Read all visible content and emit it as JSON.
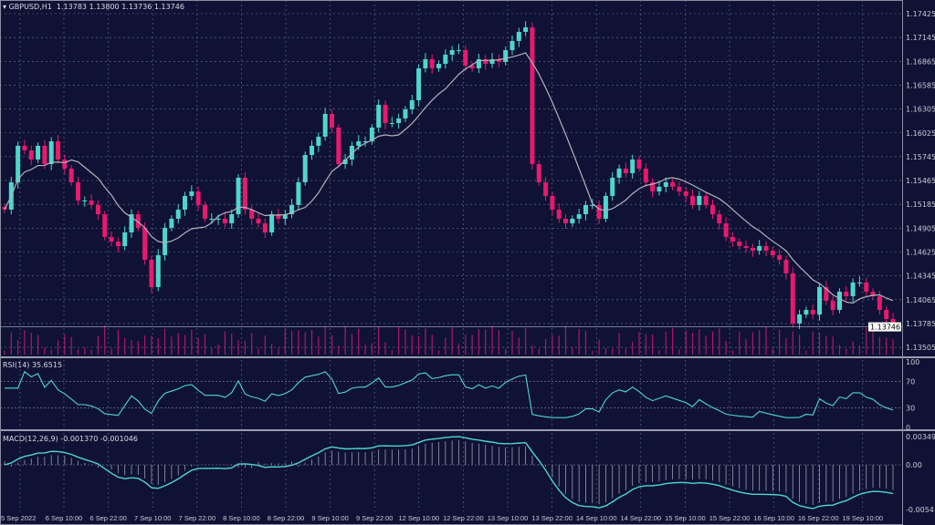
{
  "header": {
    "symbol": "GBPUSD,H1",
    "open": "1.13783",
    "high": "1.13800",
    "low": "1.13736",
    "close": "1.13746"
  },
  "rsi": {
    "label": "RSI(14) 35.6515",
    "levels": [
      "100",
      "70",
      "30",
      "0"
    ]
  },
  "macd": {
    "label": "MACD(12,26,9) -0.001370 -0.001046",
    "levels": [
      "0.003497",
      "0.00",
      "-0.005412"
    ]
  },
  "current_price": "1.13746",
  "colors": {
    "background": "#0f1234",
    "up": "#4fd6cc",
    "down": "#e8196e",
    "ma": "#b0b3bf",
    "indicator": "#4fd6cc",
    "grid": "#6a6f8a"
  },
  "chart_data": {
    "type": "candlestick",
    "title": "GBPUSD,H1",
    "ylim": [
      1.135,
      1.175
    ],
    "y_ticks": [
      "1.17425",
      "1.17145",
      "1.16865",
      "1.16585",
      "1.16305",
      "1.16025",
      "1.15745",
      "1.15465",
      "1.15185",
      "1.14905",
      "1.14625",
      "1.14345",
      "1.14065",
      "1.13785",
      "1.13505"
    ],
    "x_ticks": [
      "5 Sep 2022",
      "6 Sep 10:00",
      "6 Sep 22:00",
      "7 Sep 10:00",
      "7 Sep 22:00",
      "8 Sep 10:00",
      "8 Sep 22:00",
      "9 Sep 10:00",
      "9 Sep 22:00",
      "12 Sep 10:00",
      "12 Sep 22:00",
      "13 Sep 10:00",
      "13 Sep 22:00",
      "14 Sep 10:00",
      "14 Sep 22:00",
      "15 Sep 10:00",
      "15 Sep 22:00",
      "16 Sep 10:00",
      "16 Sep 22:00",
      "19 Sep 10:00"
    ],
    "grid": true,
    "closes": [
      1.15123,
      1.15444,
      1.15873,
      1.15819,
      1.15712,
      1.15873,
      1.15658,
      1.15926,
      1.15712,
      1.15605,
      1.15444,
      1.1523,
      1.1523,
      1.15177,
      1.15069,
      1.14802,
      1.14748,
      1.14695,
      1.14855,
      1.15069,
      1.14909,
      1.14534,
      1.14213,
      1.14588,
      1.14909,
      1.15016,
      1.15123,
      1.15284,
      1.15337,
      1.15177,
      1.15016,
      1.15016,
      1.15016,
      1.14962,
      1.15069,
      1.15498,
      1.15123,
      1.15016,
      1.14962,
      1.14855,
      1.15069,
      1.15016,
      1.15069,
      1.15177,
      1.15444,
      1.15765,
      1.15873,
      1.1598,
      1.16247,
      1.16087,
      1.15658,
      1.15712,
      1.15873,
      1.15926,
      1.15926,
      1.16087,
      1.16354,
      1.1614,
      1.1614,
      1.16194,
      1.16301,
      1.16408,
      1.16783,
      1.1689,
      1.16783,
      1.16836,
      1.16943,
      1.16997,
      1.16997,
      1.16815,
      1.16783,
      1.1689,
      1.16836,
      1.1689,
      1.16858,
      1.16997,
      1.17104,
      1.17211,
      1.17264,
      1.15658,
      1.15444,
      1.15284,
      1.15123,
      1.15016,
      1.14962,
      1.15016,
      1.15069,
      1.15177,
      1.15177,
      1.15016,
      1.15284,
      1.15498,
      1.15605,
      1.15551,
      1.15712,
      1.15605,
      1.15444,
      1.15337,
      1.15391,
      1.15444,
      1.15391,
      1.15337,
      1.15284,
      1.15177,
      1.15284,
      1.15177,
      1.15069,
      1.14962,
      1.14802,
      1.14748,
      1.14695,
      1.14673,
      1.14641,
      1.14695,
      1.14641,
      1.14588,
      1.14534,
      1.14374,
      1.13785,
      1.13892,
      1.13945,
      1.13892,
      1.14213,
      1.14052,
      1.13945,
      1.14159,
      1.14106,
      1.14267,
      1.14267,
      1.14159,
      1.14106,
      1.13945,
      1.13838,
      1.13746
    ]
  }
}
